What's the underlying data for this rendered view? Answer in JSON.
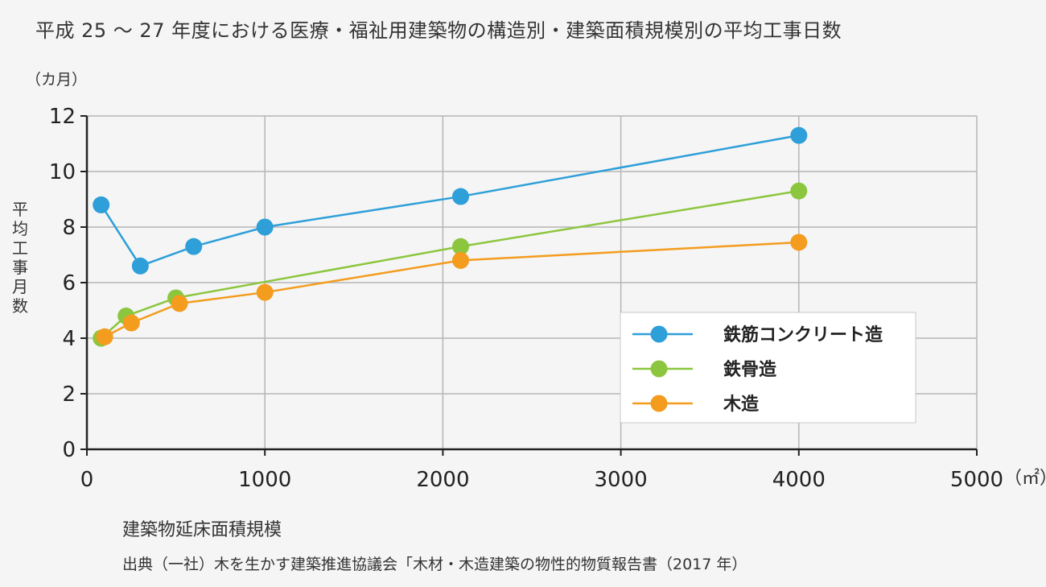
{
  "page": {
    "title": "平成 25 ～ 27 年度における医療・福祉用建築物の構造別・建築面積規模別の平均工事日数",
    "source": "出典（一社）木を生かす建築推進協議会「木材・木造建築の物性的物質報告書（2017 年）"
  },
  "chart_data": {
    "type": "line",
    "xlabel": "建築物延床面積規模",
    "ylabel": "平均工事月数",
    "x_unit": "（㎡）",
    "y_unit": "（カ月）",
    "xlim": [
      0,
      5000
    ],
    "ylim": [
      0,
      12
    ],
    "x_ticks": [
      0,
      1000,
      2000,
      3000,
      4000,
      5000
    ],
    "y_ticks": [
      0,
      2,
      4,
      6,
      8,
      10,
      12
    ],
    "grid": true,
    "legend_position": "bottom-right",
    "series": [
      {
        "name": "鉄筋コンクリート造",
        "color": "#2e9fd8",
        "points": [
          [
            80,
            8.8
          ],
          [
            300,
            6.6
          ],
          [
            600,
            7.3
          ],
          [
            1000,
            8.0
          ],
          [
            2100,
            9.1
          ],
          [
            4000,
            11.3
          ]
        ]
      },
      {
        "name": "鉄骨造",
        "color": "#8cc63f",
        "points": [
          [
            80,
            4.0
          ],
          [
            220,
            4.8
          ],
          [
            500,
            5.45
          ],
          [
            2100,
            7.3
          ],
          [
            4000,
            9.3
          ]
        ]
      },
      {
        "name": "木造",
        "color": "#f39c1e",
        "points": [
          [
            100,
            4.05
          ],
          [
            250,
            4.55
          ],
          [
            520,
            5.25
          ],
          [
            1000,
            5.65
          ],
          [
            2100,
            6.8
          ],
          [
            4000,
            7.45
          ]
        ]
      }
    ]
  }
}
